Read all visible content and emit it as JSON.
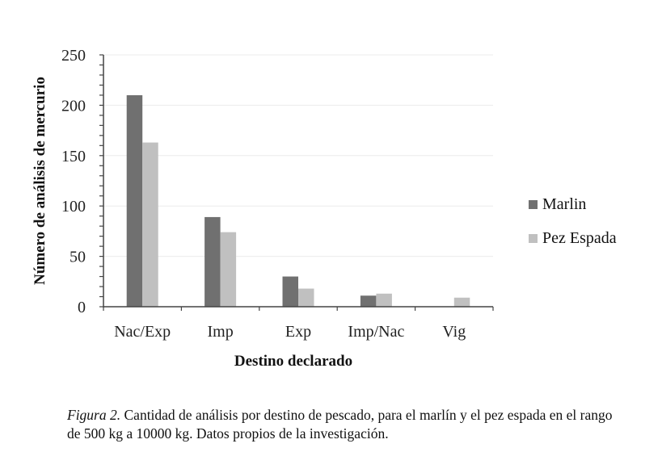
{
  "chart_data": {
    "type": "bar",
    "title": "",
    "xlabel": "Destino declarado",
    "ylabel": "Número de análisis de mercurio",
    "categories": [
      "Nac/Exp",
      "Imp",
      "Exp",
      "Imp/Nac",
      "Vig"
    ],
    "series": [
      {
        "name": "Marlin",
        "color": "#707070",
        "values": [
          210,
          89,
          30,
          11,
          0
        ]
      },
      {
        "name": "Pez Espada",
        "color": "#c0c0c0",
        "values": [
          163,
          74,
          18,
          13,
          9
        ]
      }
    ],
    "ylim": [
      0,
      250
    ],
    "yticks": [
      0,
      50,
      100,
      150,
      200,
      250
    ],
    "grid": true,
    "legend_position": "right"
  },
  "legend": {
    "items": [
      {
        "label": "Marlin",
        "color": "#707070"
      },
      {
        "label": "Pez Espada",
        "color": "#c0c0c0"
      }
    ]
  },
  "caption": {
    "label": "Figura 2.",
    "text": " Cantidad de análisis por destino de pescado, para el marlín y el pez espada en el rango de 500 kg a 10000 kg. Datos propios de la investigación."
  }
}
